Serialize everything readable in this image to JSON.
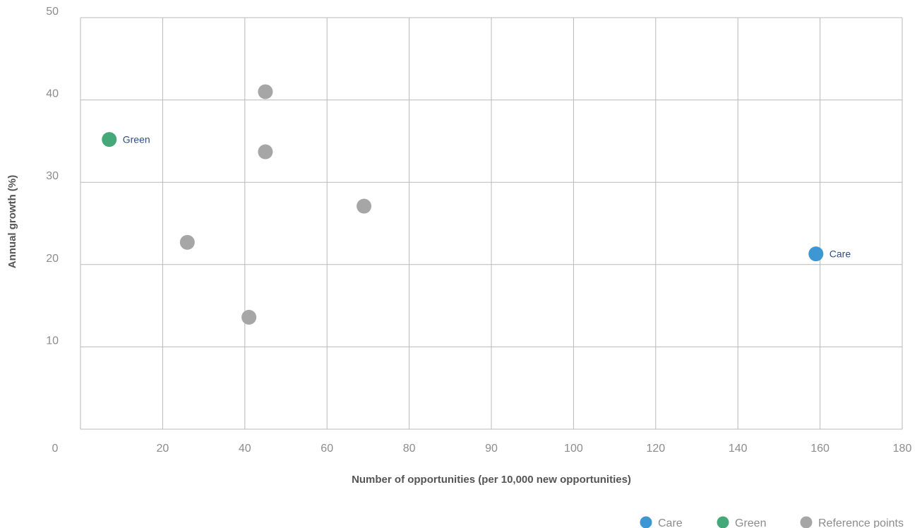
{
  "chart_data": {
    "type": "scatter",
    "xlabel": "Number of opportunities (per 10,000 new opportunities)",
    "ylabel": "Annual growth (%)",
    "x_tick_labels": [
      "0",
      "20",
      "40",
      "60",
      "80",
      "90",
      "100",
      "120",
      "140",
      "160",
      "180"
    ],
    "y_tick_labels": [
      "10",
      "20",
      "30",
      "40",
      "50"
    ],
    "ylim": [
      0,
      50
    ],
    "grid": true,
    "legend_position": "bottom-right",
    "series": [
      {
        "name": "Care",
        "color": "#3d97d3",
        "points": [
          {
            "x": 159,
            "y": 21.3,
            "label": "Care"
          }
        ]
      },
      {
        "name": "Green",
        "color": "#44a878",
        "points": [
          {
            "x": 7,
            "y": 35.2,
            "label": "Green"
          }
        ]
      },
      {
        "name": "Reference points",
        "color": "#a6a6a6",
        "points": [
          {
            "x": 45,
            "y": 41.0
          },
          {
            "x": 45,
            "y": 33.7
          },
          {
            "x": 69,
            "y": 27.1
          },
          {
            "x": 26,
            "y": 22.7
          },
          {
            "x": 41,
            "y": 13.6
          }
        ]
      }
    ]
  }
}
